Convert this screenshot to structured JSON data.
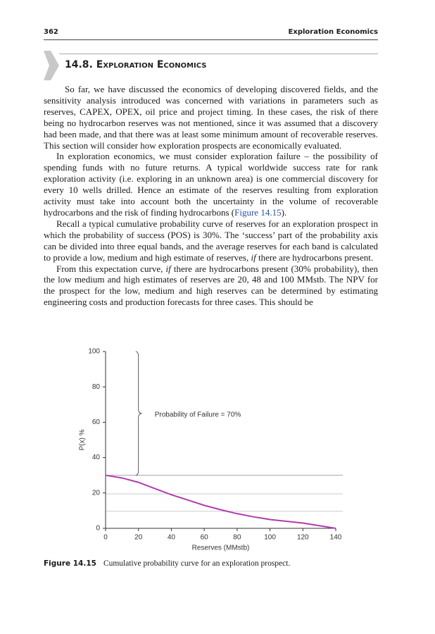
{
  "header": {
    "page_number": "362",
    "running_title": "Exploration Economics"
  },
  "section": {
    "number": "14.8.",
    "title": "Exploration Economics"
  },
  "paragraphs": [
    [
      "So far, we have discussed the economics of developing discovered fields, and the sensitivity analysis introduced was concerned with variations in parameters such as reserves, CAPEX, OPEX, oil price and project timing. In these cases, the risk of there being no hydrocarbon reserves was not mentioned, since it was assumed that a discovery had been made, and that there was at least some minimum amount of recoverable reserves. This section will consider how exploration prospects are economically evaluated."
    ],
    [
      "In exploration economics, we must consider exploration failure – the possibility of spending funds with no future returns. A typical worldwide success rate for rank exploration activity (i.e. exploring in an unknown area) is one commercial discovery for every 10 wells drilled. Hence an estimate of the reserves resulting from exploration activity must take into account both the uncertainty in the volume of recoverable hydrocarbons and the risk of finding hydrocarbons (",
      "Figure 14.15",
      ")."
    ],
    [
      "Recall a typical cumulative probability curve of reserves for an exploration prospect in which the probability of success (POS) is 30%. The ‘success’ part of the probability axis can be divided into three equal bands, and the average reserves for each band is calculated to provide a low, medium and high estimate of reserves, ",
      "if",
      " there are hydrocarbons present."
    ],
    [
      "From this expectation curve, ",
      "if",
      " there are hydrocarbons present (30% probability), then the low medium and high estimates of reserves are 20, 48 and 100 MMstb. The NPV for the prospect for the low, medium and high reserves can be determined by estimating engineering costs and production forecasts for three cases. This should be"
    ]
  ],
  "chart_data": {
    "type": "line",
    "x_label": "Reserves (MMstb)",
    "y_label": "P(x) %",
    "x": [
      0,
      10,
      20,
      30,
      40,
      50,
      60,
      70,
      80,
      90,
      100,
      110,
      120,
      130,
      140
    ],
    "series": [
      {
        "color": "#b03cb0",
        "values": [
          30,
          28.5,
          26,
          22.5,
          19,
          16,
          13,
          10.5,
          8.3,
          6.5,
          5,
          4,
          3,
          1.5,
          0
        ]
      }
    ],
    "xlim": [
      0,
      140
    ],
    "xticks": [
      0,
      20,
      40,
      60,
      80,
      100,
      120,
      140
    ],
    "ylim": [
      0,
      100
    ],
    "yticks": [
      0,
      20,
      40,
      60,
      80,
      100
    ],
    "reference_lines": [
      30,
      19.5,
      9.6
    ],
    "brace": {
      "x": 20,
      "y": [
        30,
        100
      ]
    },
    "annotation": "Probability of Failure = 70%"
  },
  "caption": {
    "label": "Figure 14.15",
    "text": "Cumulative probability curve for an exploration prospect."
  }
}
